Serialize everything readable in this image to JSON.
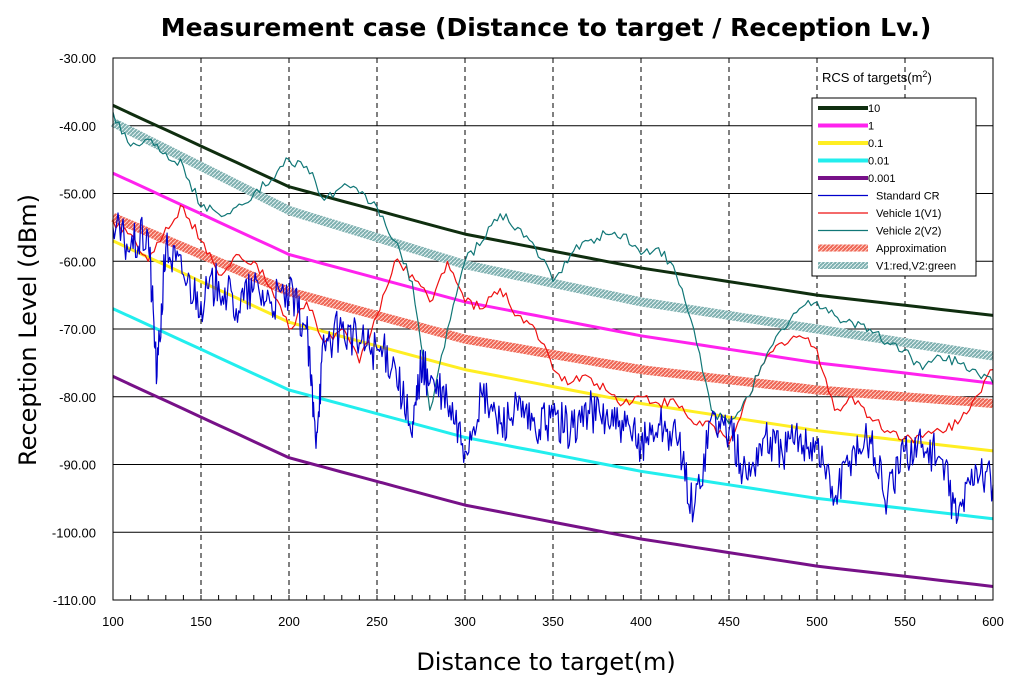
{
  "chart_data": {
    "type": "line",
    "title": "Measurement case (Distance to target / Reception Lv.)",
    "xlabel": "Distance to target(m)",
    "ylabel": "Reception Level (dBm)",
    "xlim": [
      100,
      600
    ],
    "ylim": [
      -110,
      -30
    ],
    "x_ticks": [
      "100",
      "150",
      "200",
      "250",
      "300",
      "350",
      "400",
      "450",
      "500",
      "550",
      "600"
    ],
    "y_ticks": [
      "-30.00",
      "-40.00",
      "-50.00",
      "-60.00",
      "-70.00",
      "-80.00",
      "-90.00",
      "-100.00",
      "-110.00"
    ],
    "grid": {
      "horizontal": "solid",
      "vertical": "dashed"
    },
    "legend": {
      "title": "RCS of targets(m",
      "title_sup": "2",
      "title_end": ")",
      "placement": "top-right"
    },
    "series": [
      {
        "name": "10",
        "color": "#0f2e0f",
        "style": "thick",
        "x": [
          100,
          200,
          300,
          400,
          500,
          600
        ],
        "y": [
          -37,
          -49,
          -56,
          -61,
          -65,
          -68
        ]
      },
      {
        "name": "1",
        "color": "#ff22ee",
        "style": "thick",
        "x": [
          100,
          200,
          300,
          400,
          500,
          600
        ],
        "y": [
          -47,
          -59,
          -66,
          -71,
          -75,
          -78
        ]
      },
      {
        "name": "0.1",
        "color": "#ffee22",
        "style": "thick",
        "x": [
          100,
          200,
          300,
          400,
          500,
          600
        ],
        "y": [
          -57,
          -69,
          -76,
          -81,
          -85,
          -88
        ]
      },
      {
        "name": "0.01",
        "color": "#22eeee",
        "style": "thick",
        "x": [
          100,
          200,
          300,
          400,
          500,
          600
        ],
        "y": [
          -67,
          -79,
          -86,
          -91,
          -95,
          -98
        ]
      },
      {
        "name": "0.001",
        "color": "#771188",
        "style": "thick",
        "x": [
          100,
          200,
          300,
          400,
          500,
          600
        ],
        "y": [
          -77,
          -89,
          -96,
          -101,
          -105,
          -108
        ]
      },
      {
        "name": "Standard CR",
        "color": "#0000cc",
        "style": "noisy",
        "x": [
          100,
          110,
          120,
          125,
          130,
          140,
          150,
          160,
          170,
          180,
          190,
          200,
          210,
          215,
          220,
          230,
          240,
          250,
          260,
          270,
          275,
          280,
          290,
          300,
          310,
          320,
          330,
          340,
          350,
          360,
          370,
          380,
          390,
          400,
          410,
          420,
          430,
          440,
          450,
          460,
          470,
          480,
          490,
          500,
          510,
          520,
          530,
          540,
          550,
          560,
          570,
          580,
          590,
          600
        ],
        "y": [
          -55,
          -58,
          -56,
          -77,
          -58,
          -62,
          -66,
          -63,
          -67,
          -64,
          -66,
          -65,
          -70,
          -86,
          -72,
          -70,
          -72,
          -73,
          -75,
          -86,
          -75,
          -78,
          -81,
          -88,
          -80,
          -84,
          -82,
          -85,
          -83,
          -85,
          -82,
          -83,
          -85,
          -87,
          -84,
          -86,
          -97,
          -83,
          -85,
          -92,
          -86,
          -88,
          -86,
          -87,
          -95,
          -88,
          -86,
          -95,
          -88,
          -87,
          -89,
          -98,
          -90,
          -93
        ]
      },
      {
        "name": "Vehicle 1(V1)",
        "color": "#ee1111",
        "style": "thin",
        "x": [
          100,
          110,
          120,
          130,
          140,
          150,
          160,
          170,
          180,
          190,
          200,
          210,
          220,
          230,
          240,
          250,
          260,
          270,
          280,
          290,
          300,
          310,
          320,
          330,
          340,
          350,
          360,
          370,
          380,
          390,
          400,
          410,
          420,
          430,
          440,
          450,
          460,
          470,
          480,
          490,
          500,
          510,
          520,
          530,
          540,
          550,
          560,
          570,
          580,
          590,
          600
        ],
        "y": [
          -54,
          -56,
          -60,
          -55,
          -52,
          -57,
          -62,
          -59,
          -60,
          -64,
          -70,
          -66,
          -72,
          -70,
          -75,
          -68,
          -60,
          -62,
          -66,
          -60,
          -66,
          -67,
          -64,
          -68,
          -70,
          -76,
          -78,
          -77,
          -79,
          -81,
          -80,
          -81,
          -81,
          -84,
          -84,
          -87,
          -80,
          -75,
          -72,
          -71,
          -73,
          -82,
          -80,
          -83,
          -85,
          -86,
          -86,
          -85,
          -84,
          -80,
          -76
        ]
      },
      {
        "name": "Vehicle 2(V2)",
        "color": "#117777",
        "style": "thin",
        "x": [
          100,
          110,
          120,
          130,
          140,
          150,
          160,
          170,
          180,
          190,
          200,
          210,
          220,
          230,
          240,
          250,
          260,
          270,
          280,
          290,
          300,
          310,
          320,
          330,
          340,
          350,
          360,
          370,
          380,
          390,
          400,
          410,
          420,
          430,
          440,
          450,
          460,
          470,
          480,
          490,
          500,
          510,
          520,
          530,
          540,
          550,
          560,
          570,
          580,
          590,
          600
        ],
        "y": [
          -38,
          -43,
          -42,
          -44,
          -46,
          -52,
          -53,
          -52,
          -50,
          -48,
          -45,
          -46,
          -51,
          -49,
          -50,
          -52,
          -57,
          -63,
          -82,
          -70,
          -60,
          -57,
          -53,
          -55,
          -58,
          -63,
          -59,
          -57,
          -56,
          -56,
          -59,
          -58,
          -62,
          -70,
          -82,
          -84,
          -80,
          -75,
          -70,
          -67,
          -66,
          -68,
          -69,
          -70,
          -72,
          -73,
          -76,
          -74,
          -75,
          -76,
          -78
        ]
      },
      {
        "name": "Approximation",
        "color": "#ee6655",
        "style": "band",
        "x": [
          100,
          200,
          300,
          400,
          500,
          600
        ],
        "y": [
          -53.5,
          -64.5,
          -71.5,
          -76,
          -79,
          -81
        ]
      },
      {
        "name": "V1:red,V2:green",
        "color": "#88bbbb",
        "style": "band",
        "x": [
          100,
          200,
          300,
          400,
          500,
          600
        ],
        "y": [
          -39.5,
          -52.5,
          -60.5,
          -66,
          -70,
          -74
        ]
      }
    ]
  }
}
